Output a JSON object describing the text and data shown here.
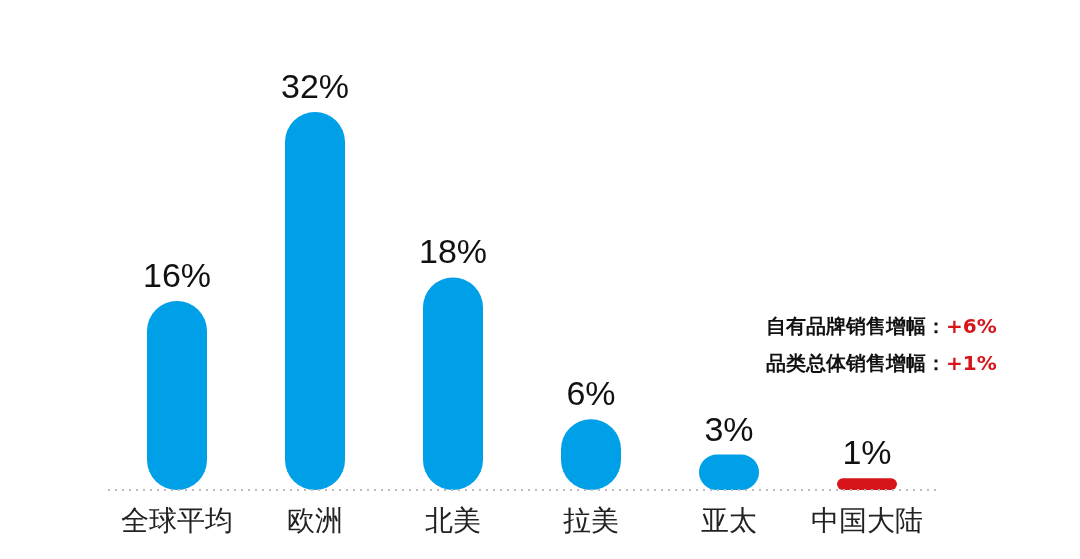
{
  "chart_data": {
    "type": "bar",
    "categories": [
      "全球平均",
      "欧洲",
      "北美",
      "拉美",
      "亚太",
      "中国大陆"
    ],
    "values": [
      16,
      32,
      18,
      6,
      3,
      1
    ],
    "colors": [
      "#00a0e9",
      "#00a0e9",
      "#00a0e9",
      "#00a0e9",
      "#00a0e9",
      "#d7141a"
    ],
    "value_labels": [
      "16%",
      "32%",
      "18%",
      "6%",
      "3%",
      "1%"
    ],
    "annotations": [
      "自有品牌销售增幅：+6%",
      "品类总体销售增幅：+1%"
    ],
    "legend": false,
    "grid": false,
    "tick_labels": "x"
  }
}
